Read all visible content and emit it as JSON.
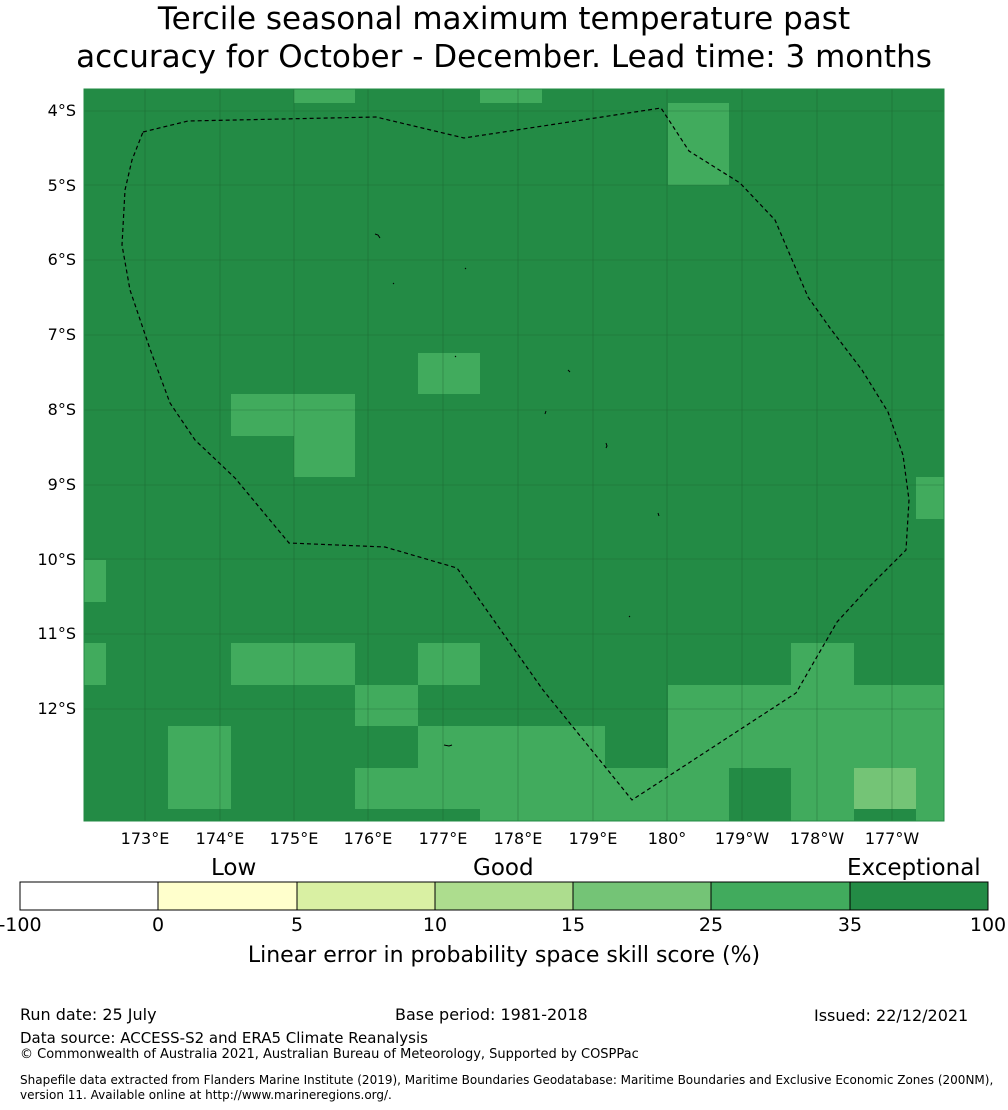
{
  "title": {
    "line1": "Tercile seasonal maximum temperature past",
    "line2": "accuracy for October - December. Lead time: 3 months"
  },
  "map": {
    "lat_labels": [
      "4°S",
      "5°S",
      "6°S",
      "7°S",
      "8°S",
      "9°S",
      "10°S",
      "11°S",
      "12°S"
    ],
    "lon_labels": [
      "173°E",
      "174°E",
      "175°E",
      "176°E",
      "177°E",
      "178°E",
      "179°E",
      "180°",
      "179°W",
      "178°W",
      "177°W"
    ],
    "colors": {
      "exceptional": "#238b45",
      "c25_35": "#41ab5d",
      "c15_25": "#74c476",
      "c10_15": "#addd8e",
      "c5_10": "#d9f0a3",
      "c0_5": "#ffffcc",
      "neg": "#ffffff"
    }
  },
  "colorbar": {
    "tier_labels": {
      "low": "Low",
      "good": "Good",
      "exceptional": "Exceptional"
    },
    "ticks": [
      "-100",
      "0",
      "5",
      "10",
      "15",
      "25",
      "35",
      "100"
    ],
    "title": "Linear error in probability space skill score (%)",
    "segment_colors": [
      "#ffffff",
      "#ffffcc",
      "#d9f0a3",
      "#addd8e",
      "#74c476",
      "#41ab5d",
      "#238b45"
    ]
  },
  "footer": {
    "run_date": "Run date: 25 July",
    "base_period": "Base period: 1981-2018",
    "issued": "Issued: 22/12/2021",
    "data_source": "Data source: ACCESS-S2 and ERA5 Climate Reanalysis",
    "copyright": "© Commonwealth of Australia 2021, Australian Bureau of Meteorology, Supported by COSPPac",
    "shapefile_line1": "Shapefile data extracted from Flanders Marine Institute (2019), Maritime Boundaries Geodatabase: Maritime Boundaries and Exclusive Economic Zones (200NM),",
    "shapefile_line2": "version 11. Available online at http://www.marineregions.org/."
  }
}
